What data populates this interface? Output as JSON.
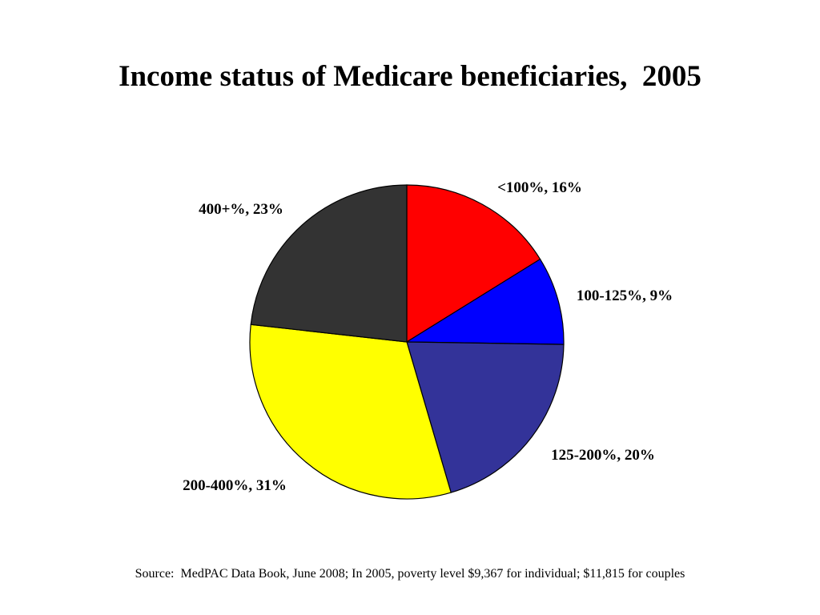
{
  "chart_data": {
    "type": "pie",
    "title": "Income status of Medicare beneficiaries,  2005",
    "slices": [
      {
        "category": "<100%",
        "value": 16,
        "label": "<100%, 16%",
        "color": "#ff0000"
      },
      {
        "category": "100-125%",
        "value": 9,
        "label": "100-125%, 9%",
        "color": "#0000ff"
      },
      {
        "category": "125-200%",
        "value": 20,
        "label": "125-200%, 20%",
        "color": "#333399"
      },
      {
        "category": "200-400%",
        "value": 31,
        "label": "200-400%, 31%",
        "color": "#ffff00"
      },
      {
        "category": "400+%",
        "value": 23,
        "label": "400+%, 23%",
        "color": "#333333"
      }
    ]
  },
  "source_note": "Source:  MedPAC Data Book, June 2008; In 2005, poverty level $9,367 for individual; $11,815 for couples"
}
